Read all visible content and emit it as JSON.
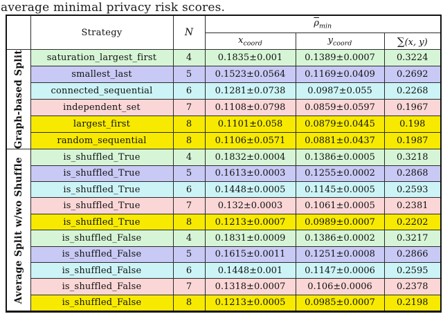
{
  "caption": "average minimal privacy risk scores.",
  "colors": {
    "green": "#d6f5d6",
    "lavender": "#c9c9f5",
    "cyan": "#ccf4f6",
    "pink": "#fbd6d6",
    "yellow": "#f7ea00"
  },
  "header": {
    "strategy": "Strategy",
    "n": "N",
    "rho": "ρ",
    "rho_sub": "min",
    "x_var": "x",
    "x_sub": "coord",
    "y_var": "y",
    "y_sub": "coord",
    "sum_sign": "∑",
    "sum_args": "(x, y)"
  },
  "groups": [
    {
      "label": "Graph-based Split"
    },
    {
      "label": "Average Split w/wo Shuffle"
    }
  ],
  "rows": [
    {
      "strategy": "saturation_largest_first",
      "n": "4",
      "x": "0.1835±0.001",
      "y": "0.1389±0.0007",
      "sum": "0.3224",
      "color": "green"
    },
    {
      "strategy": "smallest_last",
      "n": "5",
      "x": "0.1523±0.0564",
      "y": "0.1169±0.0409",
      "sum": "0.2692",
      "color": "lavender"
    },
    {
      "strategy": "connected_sequential",
      "n": "6",
      "x": "0.1281±0.0738",
      "y": "0.0987±0.055",
      "sum": "0.2268",
      "color": "cyan"
    },
    {
      "strategy": "independent_set",
      "n": "7",
      "x": "0.1108±0.0798",
      "y": "0.0859±0.0597",
      "sum": "0.1967",
      "color": "pink"
    },
    {
      "strategy": "largest_first",
      "n": "8",
      "x": "0.1101±0.058",
      "y": "0.0879±0.0445",
      "sum": "0.198",
      "color": "yellow"
    },
    {
      "strategy": "random_sequential",
      "n": "8",
      "x": "0.1106±0.0571",
      "y": "0.0881±0.0437",
      "sum": "0.1987",
      "color": "yellow"
    },
    {
      "strategy": "is_shuffled_True",
      "n": "4",
      "x": "0.1832±0.0004",
      "y": "0.1386±0.0005",
      "sum": "0.3218",
      "color": "green"
    },
    {
      "strategy": "is_shuffled_True",
      "n": "5",
      "x": "0.1613±0.0003",
      "y": "0.1255±0.0002",
      "sum": "0.2868",
      "color": "lavender"
    },
    {
      "strategy": "is_shuffled_True",
      "n": "6",
      "x": "0.1448±0.0005",
      "y": "0.1145±0.0005",
      "sum": "0.2593",
      "color": "cyan"
    },
    {
      "strategy": "is_shuffled_True",
      "n": "7",
      "x": "0.132±0.0003",
      "y": "0.1061±0.0005",
      "sum": "0.2381",
      "color": "pink"
    },
    {
      "strategy": "is_shuffled_True",
      "n": "8",
      "x": "0.1213±0.0007",
      "y": "0.0989±0.0007",
      "sum": "0.2202",
      "color": "yellow"
    },
    {
      "strategy": "is_shuffled_False",
      "n": "4",
      "x": "0.1831±0.0009",
      "y": "0.1386±0.0002",
      "sum": "0.3217",
      "color": "green"
    },
    {
      "strategy": "is_shuffled_False",
      "n": "5",
      "x": "0.1615±0.0011",
      "y": "0.1251±0.0008",
      "sum": "0.2866",
      "color": "lavender"
    },
    {
      "strategy": "is_shuffled_False",
      "n": "6",
      "x": "0.1448±0.001",
      "y": "0.1147±0.0006",
      "sum": "0.2595",
      "color": "cyan"
    },
    {
      "strategy": "is_shuffled_False",
      "n": "7",
      "x": "0.1318±0.0007",
      "y": "0.106±0.0006",
      "sum": "0.2378",
      "color": "pink"
    },
    {
      "strategy": "is_shuffled_False",
      "n": "8",
      "x": "0.1213±0.0005",
      "y": "0.0985±0.0007",
      "sum": "0.2198",
      "color": "yellow"
    }
  ]
}
